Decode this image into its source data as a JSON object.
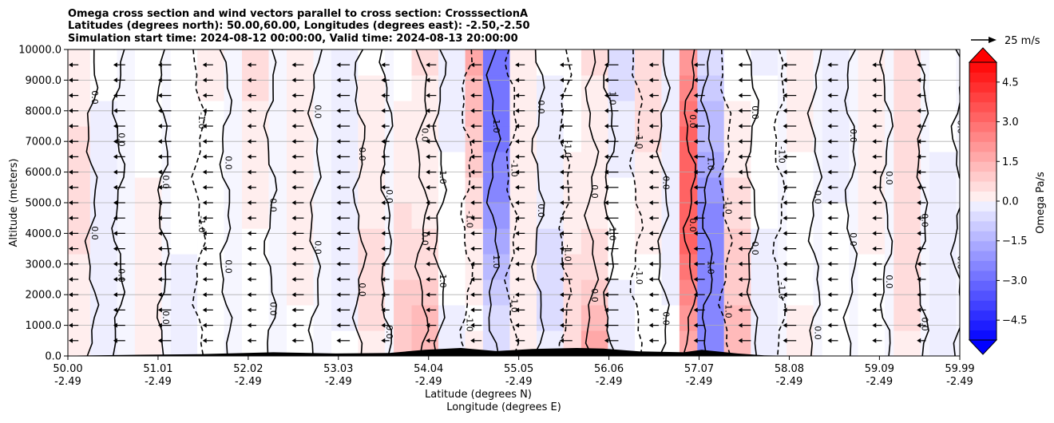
{
  "chart_data": {
    "type": "heatmap",
    "title_lines": [
      "Omega cross section and wind vectors parallel to cross section: CrosssectionA",
      "Latitudes (degrees north): 50.00,60.00, Longitudes (degrees east): -2.50,-2.50",
      "Simulation start time: 2024-08-12 00:00:00, Valid time: 2024-08-13 20:00:00"
    ],
    "ylabel": "Altitude (meters)",
    "xlabel_lat": "Latitude (degrees N)",
    "xlabel_lon": "Longitude (degrees E)",
    "ylim": [
      0,
      10000
    ],
    "y_ticks": [
      "10000.0",
      "9000.0",
      "8000.0",
      "7000.0",
      "6000.0",
      "5000.0",
      "4000.0",
      "3000.0",
      "2000.0",
      "1000.0",
      "0.0"
    ],
    "x_ticks_lat": [
      "50.00",
      "51.01",
      "52.02",
      "53.03",
      "54.04",
      "55.05",
      "56.06",
      "57.07",
      "58.08",
      "59.09",
      "59.99"
    ],
    "x_ticks_lon": [
      "-2.49",
      "-2.49",
      "-2.49",
      "-2.49",
      "-2.49",
      "-2.49",
      "-2.49",
      "-2.49",
      "-2.49",
      "-2.49",
      "-2.49"
    ],
    "colorbar": {
      "label": "Omega Pa/s",
      "range": [
        -5.25,
        5.25
      ],
      "ticks": [
        "4.5",
        "3.0",
        "1.5",
        "0.0",
        "−1.5",
        "−3.0",
        "−4.5"
      ],
      "tick_values": [
        4.5,
        3.0,
        1.5,
        0.0,
        -1.5,
        -3.0,
        -4.5
      ]
    },
    "quiver_key": "25 m/s",
    "contour_labels": [
      "0.0",
      "-1.0",
      "1.0",
      "-2.0",
      "2.0"
    ],
    "omega_columns": [
      {
        "lat": 50.1,
        "value": 0.6
      },
      {
        "lat": 50.4,
        "value": -0.4
      },
      {
        "lat": 50.9,
        "value": 0.5
      },
      {
        "lat": 51.3,
        "value": -0.6
      },
      {
        "lat": 51.6,
        "value": 0.4
      },
      {
        "lat": 52.1,
        "value": 0.7
      },
      {
        "lat": 52.6,
        "value": 0.5
      },
      {
        "lat": 53.1,
        "value": -0.3
      },
      {
        "lat": 53.4,
        "value": 0.6
      },
      {
        "lat": 53.8,
        "value": 1.2
      },
      {
        "lat": 54.0,
        "value": 2.2
      },
      {
        "lat": 54.3,
        "value": -0.8
      },
      {
        "lat": 54.6,
        "value": 1.8
      },
      {
        "lat": 54.8,
        "value": -3.0
      },
      {
        "lat": 55.1,
        "value": 0.5
      },
      {
        "lat": 55.4,
        "value": -0.6
      },
      {
        "lat": 55.7,
        "value": 0.8
      },
      {
        "lat": 55.9,
        "value": 2.4
      },
      {
        "lat": 56.2,
        "value": -1.2
      },
      {
        "lat": 56.5,
        "value": 0.9
      },
      {
        "lat": 56.8,
        "value": -0.5
      },
      {
        "lat": 57.0,
        "value": 3.5
      },
      {
        "lat": 57.2,
        "value": -2.8
      },
      {
        "lat": 57.5,
        "value": 1.5
      },
      {
        "lat": 57.8,
        "value": -0.7
      },
      {
        "lat": 58.2,
        "value": 0.8
      },
      {
        "lat": 58.6,
        "value": -0.4
      },
      {
        "lat": 59.0,
        "value": 0.3
      },
      {
        "lat": 59.4,
        "value": 0.9
      },
      {
        "lat": 59.8,
        "value": -0.3
      }
    ],
    "wind_vectors": [
      {
        "lat": 50.0,
        "speed": -8
      },
      {
        "lat": 50.5,
        "speed": -11
      },
      {
        "lat": 51.0,
        "speed": -13
      },
      {
        "lat": 51.5,
        "speed": -9
      },
      {
        "lat": 52.0,
        "speed": -7
      },
      {
        "lat": 52.5,
        "speed": -11
      },
      {
        "lat": 53.0,
        "speed": -13
      },
      {
        "lat": 53.5,
        "speed": -6
      },
      {
        "lat": 54.0,
        "speed": -9
      },
      {
        "lat": 54.5,
        "speed": -10
      },
      {
        "lat": 55.0,
        "speed": -8
      },
      {
        "lat": 55.5,
        "speed": -12
      },
      {
        "lat": 56.0,
        "speed": -14
      },
      {
        "lat": 56.5,
        "speed": -8
      },
      {
        "lat": 57.0,
        "speed": -10
      },
      {
        "lat": 57.5,
        "speed": -12
      },
      {
        "lat": 58.0,
        "speed": -13
      },
      {
        "lat": 58.5,
        "speed": -9
      },
      {
        "lat": 59.0,
        "speed": -8
      },
      {
        "lat": 59.5,
        "speed": -7
      }
    ],
    "colors": {
      "positive": "#ff0000",
      "negative": "#0000ff",
      "neutral": "#ffffff",
      "contour": "#000000",
      "terrain": "#000000",
      "grid": "#b0b0b0"
    }
  }
}
